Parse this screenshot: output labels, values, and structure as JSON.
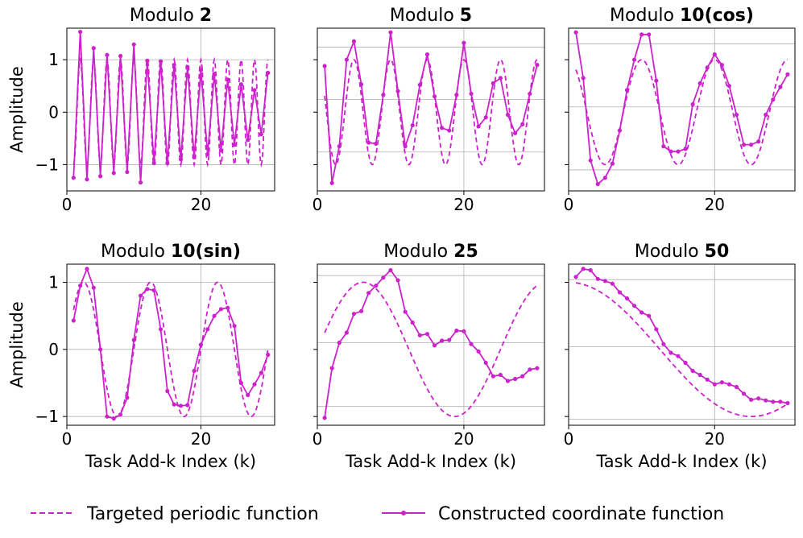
{
  "chart_data": {
    "type": "line",
    "color": "#cc22cc",
    "ylabel": "Amplitude",
    "xlabel": "Task Add-k Index (k)",
    "legend": {
      "placement": "bottom-center",
      "targeted_label": "Targeted periodic function",
      "constructed_label": "Constructed coordinate function"
    },
    "panels": [
      {
        "title_prefix": "Modulo ",
        "title_bold": "2",
        "modulus": 2,
        "func": "cos",
        "xlim": [
          0,
          31
        ],
        "ylim": [
          -1.5,
          1.6
        ],
        "x_ticks": [
          0,
          20
        ],
        "y_ticks": [
          -1,
          0,
          1
        ],
        "y_gridlines": [
          -1,
          0,
          1
        ],
        "show_ylabel": true,
        "show_ytick_labels": true,
        "show_xlabel": false,
        "constructed": [
          -1.25,
          1.53,
          -1.28,
          1.22,
          -1.22,
          1.09,
          -1.16,
          1.07,
          -1.14,
          1.29,
          -1.34,
          0.98,
          -0.97,
          0.97,
          -0.97,
          0.9,
          -0.9,
          0.86,
          -0.86,
          0.8,
          -0.8,
          0.73,
          -0.73,
          0.62,
          -0.62,
          0.53,
          -0.53,
          0.42,
          -0.42,
          0.75
        ]
      },
      {
        "title_prefix": "Modulo ",
        "title_bold": "5",
        "modulus": 5,
        "func": "cos",
        "xlim": [
          0,
          31
        ],
        "ylim": [
          -1.5,
          1.6
        ],
        "x_ticks": [
          0,
          20
        ],
        "y_ticks": [
          -1,
          0,
          1
        ],
        "y_gridlines": [
          -0.76,
          0.24,
          1.24
        ],
        "show_ylabel": false,
        "show_ytick_labels": false,
        "show_xlabel": false,
        "constructed": [
          0.88,
          -1.35,
          -0.65,
          1.0,
          1.35,
          0.53,
          -0.58,
          -0.6,
          0.33,
          1.52,
          0.4,
          -0.65,
          -0.25,
          0.52,
          1.1,
          0.3,
          -0.3,
          -0.35,
          0.33,
          1.32,
          0.35,
          -0.27,
          -0.1,
          0.55,
          0.65,
          -0.05,
          -0.4,
          -0.23,
          0.35,
          0.9
        ]
      },
      {
        "title_prefix": "Modulo ",
        "title_bold": "10(cos)",
        "modulus": 10,
        "func": "cos",
        "xlim": [
          0,
          31
        ],
        "ylim": [
          -1.5,
          1.6
        ],
        "x_ticks": [
          0,
          20
        ],
        "y_ticks": [
          -1,
          0,
          1
        ],
        "y_gridlines": [
          -1.1,
          0.1,
          1.3
        ],
        "show_ylabel": false,
        "show_ytick_labels": false,
        "show_xlabel": false,
        "constructed": [
          1.52,
          0.65,
          -0.92,
          -1.37,
          -1.25,
          -0.98,
          -0.35,
          0.42,
          1.0,
          1.48,
          1.48,
          0.6,
          -0.65,
          -0.75,
          -0.75,
          -0.7,
          0.15,
          0.55,
          0.85,
          1.1,
          0.9,
          0.5,
          -0.05,
          -0.62,
          -0.62,
          -0.56,
          -0.05,
          0.24,
          0.48,
          0.72
        ]
      },
      {
        "title_prefix": "Modulo ",
        "title_bold": "10(sin)",
        "modulus": 10,
        "func": "sin",
        "xlim": [
          0,
          31
        ],
        "ylim": [
          -1.13,
          1.27
        ],
        "x_ticks": [
          0,
          20
        ],
        "y_ticks": [
          -1,
          0,
          1
        ],
        "y_gridlines": [
          -1,
          0,
          1
        ],
        "show_ylabel": true,
        "show_ytick_labels": true,
        "show_xlabel": true,
        "constructed": [
          0.43,
          0.95,
          1.2,
          0.92,
          0.0,
          -1.0,
          -1.03,
          -0.97,
          -0.72,
          0.14,
          0.8,
          0.9,
          0.88,
          0.3,
          -0.62,
          -0.82,
          -0.84,
          -0.83,
          -0.32,
          0.07,
          0.3,
          0.5,
          0.6,
          0.62,
          0.35,
          -0.5,
          -0.68,
          -0.52,
          -0.35,
          -0.08
        ]
      },
      {
        "title_prefix": "Modulo ",
        "title_bold": "25",
        "modulus": 25,
        "func": "sin",
        "xlim": [
          0,
          31
        ],
        "ylim": [
          -1.13,
          1.27
        ],
        "x_ticks": [
          0,
          20
        ],
        "y_ticks": [
          -1,
          0,
          1
        ],
        "y_gridlines": [
          -0.85,
          0.1,
          1.1
        ],
        "show_ylabel": false,
        "show_ytick_labels": false,
        "show_xlabel": true,
        "constructed": [
          -1.02,
          -0.28,
          0.1,
          0.25,
          0.53,
          0.57,
          0.84,
          0.95,
          1.07,
          1.18,
          1.03,
          0.56,
          0.4,
          0.21,
          0.23,
          0.06,
          0.13,
          0.14,
          0.28,
          0.27,
          0.08,
          -0.03,
          -0.2,
          -0.4,
          -0.38,
          -0.47,
          -0.44,
          -0.4,
          -0.3,
          -0.28
        ]
      },
      {
        "title_prefix": "Modulo ",
        "title_bold": "50",
        "modulus": 50,
        "func": "cos",
        "xlim": [
          0,
          31
        ],
        "ylim": [
          -1.13,
          1.27
        ],
        "x_ticks": [
          0,
          20
        ],
        "y_ticks": [
          -1,
          0,
          1
        ],
        "y_gridlines": [
          -1.04,
          0.04,
          1.04
        ],
        "show_ylabel": false,
        "show_ytick_labels": false,
        "show_xlabel": true,
        "constructed": [
          1.08,
          1.2,
          1.18,
          1.05,
          1.02,
          0.98,
          0.85,
          0.76,
          0.65,
          0.55,
          0.5,
          0.3,
          0.08,
          -0.05,
          -0.1,
          -0.2,
          -0.32,
          -0.38,
          -0.45,
          -0.52,
          -0.49,
          -0.52,
          -0.56,
          -0.66,
          -0.75,
          -0.73,
          -0.76,
          -0.78,
          -0.78,
          -0.8
        ]
      }
    ]
  }
}
